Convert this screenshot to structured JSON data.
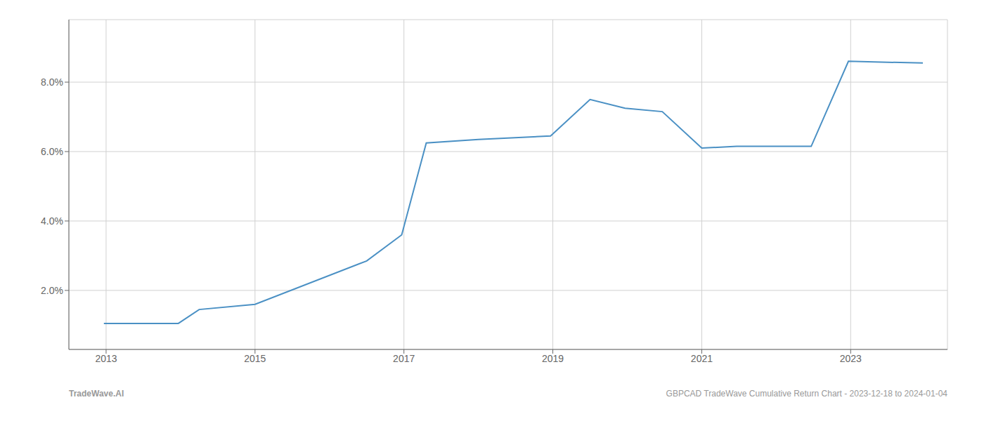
{
  "chart_data": {
    "type": "line",
    "x": [
      2012.97,
      2013.97,
      2014.25,
      2015.0,
      2016.5,
      2016.97,
      2017.3,
      2018.0,
      2018.97,
      2019.5,
      2019.97,
      2020.47,
      2021.0,
      2021.47,
      2022.47,
      2022.97,
      2023.97
    ],
    "values": [
      1.05,
      1.05,
      1.45,
      1.6,
      2.85,
      3.6,
      6.25,
      6.35,
      6.45,
      7.5,
      7.25,
      7.15,
      6.1,
      6.15,
      6.15,
      8.6,
      8.55
    ],
    "color": "#4a90c4",
    "xlim": [
      2012.5,
      2024.3
    ],
    "ylim": [
      0.3,
      9.8
    ],
    "xticks": [
      2013,
      2015,
      2017,
      2019,
      2021,
      2023
    ],
    "yticks": [
      {
        "value": 2.0,
        "label": "2.0%"
      },
      {
        "value": 4.0,
        "label": "4.0%"
      },
      {
        "value": 6.0,
        "label": "6.0%"
      },
      {
        "value": 8.0,
        "label": "8.0%"
      }
    ],
    "grid": true,
    "annotations": [
      "TradeWave.AI",
      "GBPCAD TradeWave Cumulative Return Chart - 2023-12-18 to 2024-01-04"
    ]
  }
}
